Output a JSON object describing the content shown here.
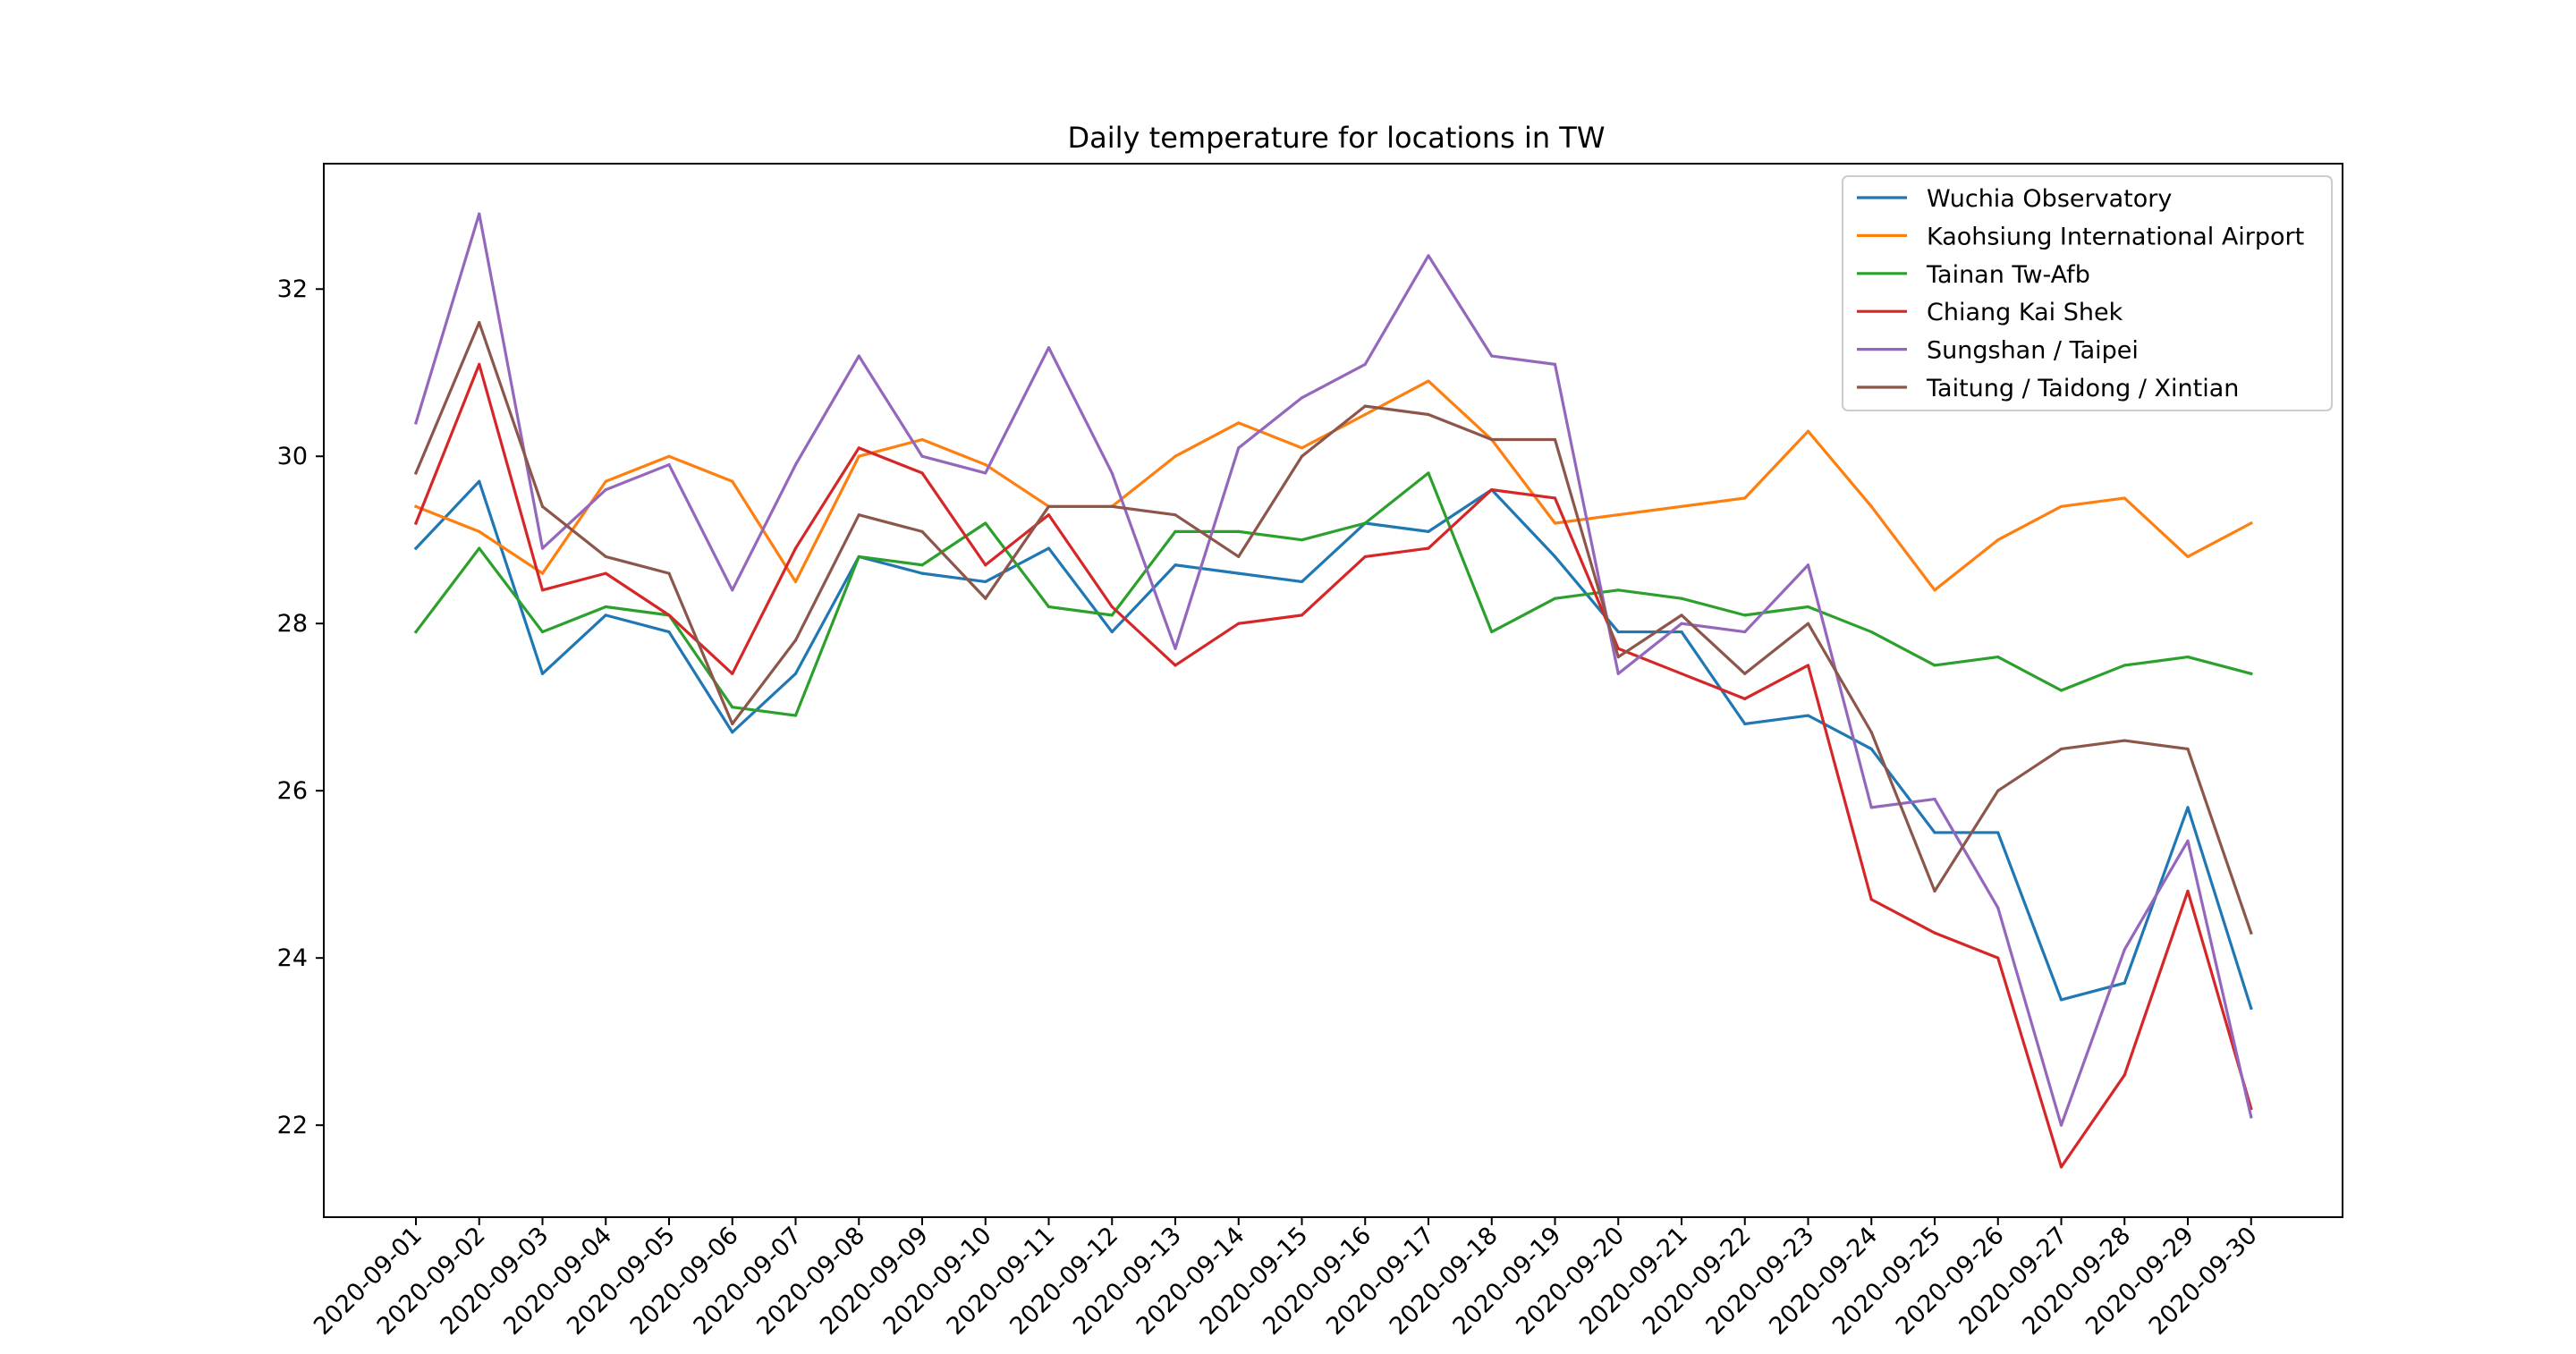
{
  "chart_data": {
    "type": "line",
    "title": "Daily temperature for locations in TW",
    "xlabel": "",
    "ylabel": "",
    "ylim": [
      20.9,
      33.5
    ],
    "yticks": [
      22,
      24,
      26,
      28,
      30,
      32
    ],
    "grid": false,
    "legend_position": "top-right",
    "categories": [
      "2020-09-01",
      "2020-09-02",
      "2020-09-03",
      "2020-09-04",
      "2020-09-05",
      "2020-09-06",
      "2020-09-07",
      "2020-09-08",
      "2020-09-09",
      "2020-09-10",
      "2020-09-11",
      "2020-09-12",
      "2020-09-13",
      "2020-09-14",
      "2020-09-15",
      "2020-09-16",
      "2020-09-17",
      "2020-09-18",
      "2020-09-19",
      "2020-09-20",
      "2020-09-21",
      "2020-09-22",
      "2020-09-23",
      "2020-09-24",
      "2020-09-25",
      "2020-09-26",
      "2020-09-27",
      "2020-09-28",
      "2020-09-29",
      "2020-09-30"
    ],
    "series": [
      {
        "name": "Wuchia Observatory",
        "color": "#1f77b4",
        "x": [
          "2020-09-01",
          "2020-09-02",
          "2020-09-03",
          "2020-09-04",
          "2020-09-05",
          "2020-09-06",
          "2020-09-07",
          "2020-09-08",
          "2020-09-09",
          "2020-09-10",
          "2020-09-11",
          "2020-09-12",
          "2020-09-13",
          "2020-09-14",
          "2020-09-15",
          "2020-09-16",
          "2020-09-17",
          "2020-09-18",
          "2020-09-19",
          "2020-09-20",
          "2020-09-21",
          "2020-09-22",
          "2020-09-23",
          "2020-09-24",
          "2020-09-25",
          "2020-09-26",
          "2020-09-27",
          "2020-09-28",
          "2020-09-29",
          "2020-09-30"
        ],
        "values": [
          28.9,
          29.7,
          27.4,
          28.1,
          27.9,
          26.7,
          27.4,
          28.8,
          28.6,
          28.5,
          28.9,
          27.9,
          28.7,
          28.6,
          28.5,
          29.2,
          29.1,
          29.6,
          28.8,
          27.9,
          27.9,
          26.8,
          26.9,
          26.5,
          25.5,
          25.5,
          23.5,
          23.7,
          25.8,
          23.4
        ]
      },
      {
        "name": "Kaohsiung International Airport",
        "color": "#ff7f0e",
        "x": [
          "2020-09-01",
          "2020-09-02",
          "2020-09-03",
          "2020-09-04",
          "2020-09-05",
          "2020-09-06",
          "2020-09-07",
          "2020-09-08",
          "2020-09-09",
          "2020-09-10",
          "2020-09-11",
          "2020-09-12",
          "2020-09-13",
          "2020-09-14",
          "2020-09-15",
          "2020-09-16",
          "2020-09-17",
          "2020-09-18",
          "2020-09-19",
          "2020-09-22",
          "2020-09-23",
          "2020-09-24",
          "2020-09-25",
          "2020-09-26",
          "2020-09-27",
          "2020-09-28",
          "2020-09-29",
          "2020-09-30"
        ],
        "values": [
          29.4,
          29.1,
          28.6,
          29.7,
          30.0,
          29.7,
          28.5,
          30.0,
          30.2,
          29.9,
          29.4,
          29.4,
          30.0,
          30.4,
          30.1,
          30.5,
          30.9,
          30.2,
          29.2,
          29.5,
          30.3,
          29.4,
          28.4,
          29.0,
          29.4,
          29.5,
          28.8,
          29.2
        ]
      },
      {
        "name": "Tainan Tw-Afb",
        "color": "#2ca02c",
        "x": [
          "2020-09-01",
          "2020-09-02",
          "2020-09-03",
          "2020-09-04",
          "2020-09-05",
          "2020-09-06",
          "2020-09-07",
          "2020-09-08",
          "2020-09-09",
          "2020-09-10",
          "2020-09-11",
          "2020-09-12",
          "2020-09-13",
          "2020-09-14",
          "2020-09-15",
          "2020-09-16",
          "2020-09-17",
          "2020-09-18",
          "2020-09-19",
          "2020-09-20",
          "2020-09-21",
          "2020-09-22",
          "2020-09-23",
          "2020-09-24",
          "2020-09-25",
          "2020-09-26",
          "2020-09-27",
          "2020-09-28",
          "2020-09-29",
          "2020-09-30"
        ],
        "values": [
          27.9,
          28.9,
          27.9,
          28.2,
          28.1,
          27.0,
          26.9,
          28.8,
          28.7,
          29.2,
          28.2,
          28.1,
          29.1,
          29.1,
          29.0,
          29.2,
          29.8,
          27.9,
          28.3,
          28.4,
          28.3,
          28.1,
          28.2,
          27.9,
          27.5,
          27.6,
          27.2,
          27.5,
          27.6,
          27.4
        ]
      },
      {
        "name": "Chiang Kai Shek",
        "color": "#d62728",
        "x": [
          "2020-09-01",
          "2020-09-02",
          "2020-09-03",
          "2020-09-04",
          "2020-09-05",
          "2020-09-06",
          "2020-09-07",
          "2020-09-08",
          "2020-09-09",
          "2020-09-10",
          "2020-09-11",
          "2020-09-12",
          "2020-09-13",
          "2020-09-14",
          "2020-09-15",
          "2020-09-16",
          "2020-09-17",
          "2020-09-18",
          "2020-09-19",
          "2020-09-20",
          "2020-09-21",
          "2020-09-22",
          "2020-09-23",
          "2020-09-24",
          "2020-09-25",
          "2020-09-26",
          "2020-09-27",
          "2020-09-28",
          "2020-09-29",
          "2020-09-30"
        ],
        "values": [
          29.2,
          31.1,
          28.4,
          28.6,
          28.1,
          27.4,
          28.9,
          30.1,
          29.8,
          28.7,
          29.3,
          28.2,
          27.5,
          28.0,
          28.1,
          28.8,
          28.9,
          29.6,
          29.5,
          27.7,
          27.4,
          27.1,
          27.5,
          24.7,
          24.3,
          24.0,
          21.5,
          22.6,
          24.8,
          22.2
        ]
      },
      {
        "name": "Sungshan / Taipei",
        "color": "#9467bd",
        "x": [
          "2020-09-01",
          "2020-09-02",
          "2020-09-03",
          "2020-09-04",
          "2020-09-05",
          "2020-09-06",
          "2020-09-07",
          "2020-09-08",
          "2020-09-09",
          "2020-09-10",
          "2020-09-11",
          "2020-09-12",
          "2020-09-13",
          "2020-09-14",
          "2020-09-15",
          "2020-09-16",
          "2020-09-17",
          "2020-09-18",
          "2020-09-19",
          "2020-09-20",
          "2020-09-21",
          "2020-09-22",
          "2020-09-23",
          "2020-09-24",
          "2020-09-25",
          "2020-09-26",
          "2020-09-27",
          "2020-09-28",
          "2020-09-29",
          "2020-09-30"
        ],
        "values": [
          30.4,
          32.9,
          28.9,
          29.6,
          29.9,
          28.4,
          29.9,
          31.2,
          30.0,
          29.8,
          31.3,
          29.8,
          27.7,
          30.1,
          30.7,
          31.1,
          32.4,
          31.2,
          31.1,
          27.4,
          28.0,
          27.9,
          28.7,
          25.8,
          25.9,
          24.6,
          22.0,
          24.1,
          25.4,
          22.1
        ]
      },
      {
        "name": "Taitung / Taidong / Xintian",
        "color": "#8c564b",
        "x": [
          "2020-09-01",
          "2020-09-02",
          "2020-09-03",
          "2020-09-04",
          "2020-09-05",
          "2020-09-06",
          "2020-09-07",
          "2020-09-08",
          "2020-09-09",
          "2020-09-10",
          "2020-09-11",
          "2020-09-12",
          "2020-09-13",
          "2020-09-14",
          "2020-09-15",
          "2020-09-16",
          "2020-09-17",
          "2020-09-18",
          "2020-09-19",
          "2020-09-20",
          "2020-09-21",
          "2020-09-22",
          "2020-09-23",
          "2020-09-24",
          "2020-09-25",
          "2020-09-26",
          "2020-09-27",
          "2020-09-28",
          "2020-09-29",
          "2020-09-30"
        ],
        "values": [
          29.8,
          31.6,
          29.4,
          28.8,
          28.6,
          26.8,
          27.8,
          29.3,
          29.1,
          28.3,
          29.4,
          29.4,
          29.3,
          28.8,
          30.0,
          30.6,
          30.5,
          30.2,
          30.2,
          27.6,
          28.1,
          27.4,
          28.0,
          26.7,
          24.8,
          26.0,
          26.5,
          26.6,
          26.5,
          24.3
        ]
      }
    ]
  }
}
